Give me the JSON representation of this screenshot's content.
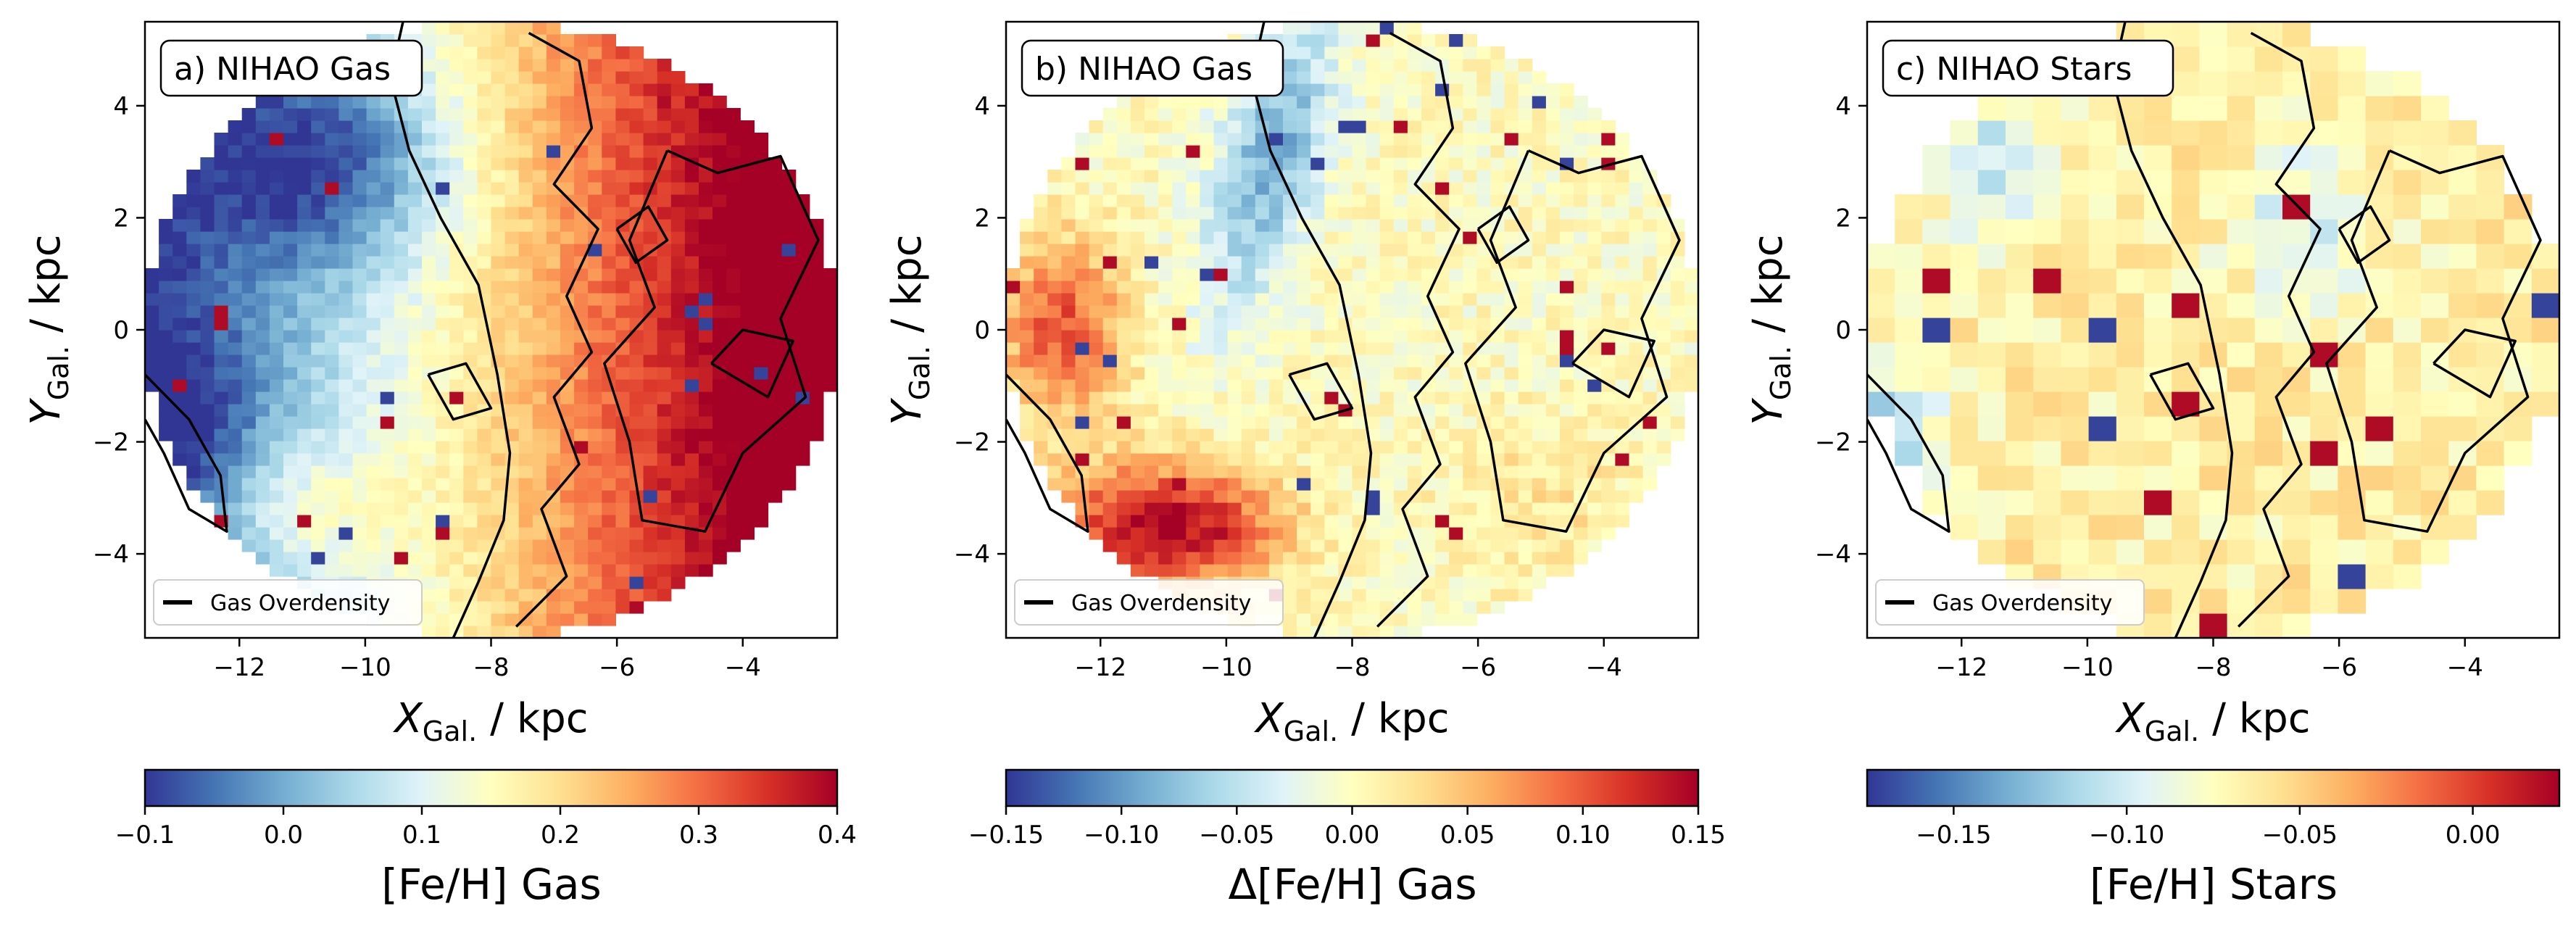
{
  "panels": [
    {
      "label": "a) NIHAO Gas",
      "xlabel_main": "X",
      "xlabel_sub": "Gal.",
      "xlabel_unit": "/ kpc",
      "ylabel_main": "Y",
      "ylabel_sub": "Gal.",
      "ylabel_unit": "/ kpc",
      "legend": "Gas Overdensity",
      "colorbar_label": "[Fe/H] Gas",
      "colorbar_ticks": [
        "−0.1",
        "0.0",
        "0.1",
        "0.2",
        "0.3",
        "0.4"
      ]
    },
    {
      "label": "b) NIHAO Gas",
      "xlabel_main": "X",
      "xlabel_sub": "Gal.",
      "xlabel_unit": "/ kpc",
      "ylabel_main": "Y",
      "ylabel_sub": "Gal.",
      "ylabel_unit": "/ kpc",
      "legend": "Gas Overdensity",
      "colorbar_label": "Δ[Fe/H] Gas",
      "colorbar_ticks": [
        "−0.15",
        "−0.10",
        "−0.05",
        "0.00",
        "0.05",
        "0.10",
        "0.15"
      ]
    },
    {
      "label": "c) NIHAO Stars",
      "xlabel_main": "X",
      "xlabel_sub": "Gal.",
      "xlabel_unit": "/ kpc",
      "ylabel_main": "Y",
      "ylabel_sub": "Gal.",
      "ylabel_unit": "/ kpc",
      "legend": "Gas Overdensity",
      "colorbar_label": "[Fe/H] Stars",
      "colorbar_ticks": [
        "−0.15",
        "−0.10",
        "−0.05",
        "0.00"
      ]
    }
  ],
  "chart_data": [
    {
      "type": "heatmap",
      "label": "a) NIHAO Gas",
      "xlabel": "X_Gal. / kpc",
      "ylabel": "Y_Gal. / kpc",
      "xlim": [
        -13.5,
        -2.5
      ],
      "ylim": [
        -5.5,
        5.5
      ],
      "xticks": [
        -12,
        -10,
        -8,
        -6,
        -4
      ],
      "yticks": [
        -4,
        -2,
        0,
        2,
        4
      ],
      "footprint": {
        "center": [
          -8.0,
          0.0
        ],
        "radius_kpc": 5.5
      },
      "colormap": "RdYlBu_r",
      "colorbar_label": "[Fe/H] Gas",
      "clim": [
        -0.1,
        0.4
      ],
      "colorbar_ticks": [
        -0.1,
        0.0,
        0.1,
        0.2,
        0.3,
        0.4
      ],
      "contour_legend": "Gas Overdensity",
      "field_pattern": "gradient high toward -X/right side, low (~-0.05) in upper-left, mid-high (~0.15) around (-11,-3)"
    },
    {
      "type": "heatmap",
      "label": "b) NIHAO Gas",
      "xlabel": "X_Gal. / kpc",
      "ylabel": "Y_Gal. / kpc",
      "xlim": [
        -13.5,
        -2.5
      ],
      "ylim": [
        -5.5,
        5.5
      ],
      "xticks": [
        -12,
        -10,
        -8,
        -6,
        -4
      ],
      "yticks": [
        -4,
        -2,
        0,
        2,
        4
      ],
      "footprint": {
        "center": [
          -8.0,
          0.0
        ],
        "radius_kpc": 5.5
      },
      "colormap": "RdYlBu_r",
      "colorbar_label": "Δ[Fe/H] Gas",
      "clim": [
        -0.15,
        0.15
      ],
      "colorbar_ticks": [
        -0.15,
        -0.1,
        -0.05,
        0.0,
        0.05,
        0.1,
        0.15
      ],
      "contour_legend": "Gas Overdensity",
      "field_pattern": "high (~0.15) near (-11,-3.5) and (-12.5,0), low (~-0.08) diagonal band from (-10,3) to (-8,-1)"
    },
    {
      "type": "heatmap",
      "label": "c) NIHAO Stars",
      "xlabel": "X_Gal. / kpc",
      "ylabel": "Y_Gal. / kpc",
      "xlim": [
        -13.5,
        -2.5
      ],
      "ylim": [
        -5.5,
        5.5
      ],
      "xticks": [
        -12,
        -10,
        -8,
        -6,
        -4
      ],
      "yticks": [
        -4,
        -2,
        0,
        2,
        4
      ],
      "footprint": {
        "center": [
          -8.0,
          0.0
        ],
        "radius_kpc": 5.5
      },
      "colormap": "RdYlBu_r",
      "colorbar_label": "[Fe/H] Stars",
      "clim": [
        -0.175,
        0.025
      ],
      "colorbar_ticks": [
        -0.15,
        -0.1,
        -0.05,
        0.0
      ],
      "contour_legend": "Gas Overdensity",
      "field_pattern": "noisy, mostly -0.05 to -0.10; low (~-0.17) at left edge (-13,-3) and (-12,2)"
    }
  ],
  "colors": {
    "cmap": [
      "#313695",
      "#4575b4",
      "#74add1",
      "#abd9e9",
      "#e0f3f8",
      "#ffffbf",
      "#fee090",
      "#fdae61",
      "#f46d43",
      "#d73027",
      "#a50026"
    ],
    "contour": "#000000",
    "frame": "#000000"
  }
}
